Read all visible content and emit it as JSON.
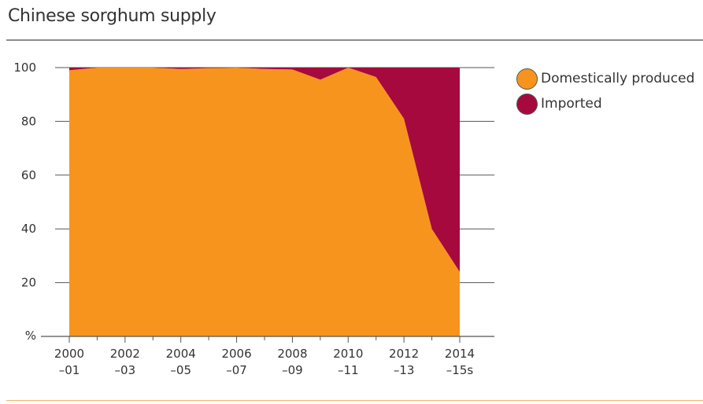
{
  "title": "Chinese sorghum supply",
  "chart_data": {
    "type": "area",
    "stacked": true,
    "title": "Chinese sorghum supply",
    "ylabel": "%",
    "ylim": [
      0,
      100
    ],
    "yticks": [
      100,
      80,
      60,
      40,
      20
    ],
    "y_unit_label": "%",
    "x": [
      "2000-01",
      "2001-02",
      "2002-03",
      "2003-04",
      "2004-05",
      "2005-06",
      "2006-07",
      "2007-08",
      "2008-09",
      "2009-10",
      "2010-11",
      "2011-12",
      "2012-13",
      "2013-14",
      "2014-15"
    ],
    "xtick_labels": [
      {
        "line1": "2000",
        "line2": "–01"
      },
      {
        "line1": "2002",
        "line2": "–03"
      },
      {
        "line1": "2004",
        "line2": "–05"
      },
      {
        "line1": "2006",
        "line2": "–07"
      },
      {
        "line1": "2008",
        "line2": "–09"
      },
      {
        "line1": "2010",
        "line2": "–11"
      },
      {
        "line1": "2012",
        "line2": "–13"
      },
      {
        "line1": "2014",
        "line2": "–15s"
      }
    ],
    "series": [
      {
        "name": "Domestically produced",
        "color": "#f7941d",
        "values": [
          99,
          100,
          100,
          100,
          99.5,
          99.8,
          100,
          99.5,
          99.3,
          95.5,
          100,
          96.5,
          81,
          40,
          24
        ]
      },
      {
        "name": "Imported",
        "color": "#a6093d",
        "values": [
          1,
          0,
          0,
          0,
          0.5,
          0.2,
          0,
          0.5,
          0.7,
          4.5,
          0,
          3.5,
          19,
          60,
          76
        ]
      }
    ],
    "grid": true,
    "legend_position": "right"
  }
}
